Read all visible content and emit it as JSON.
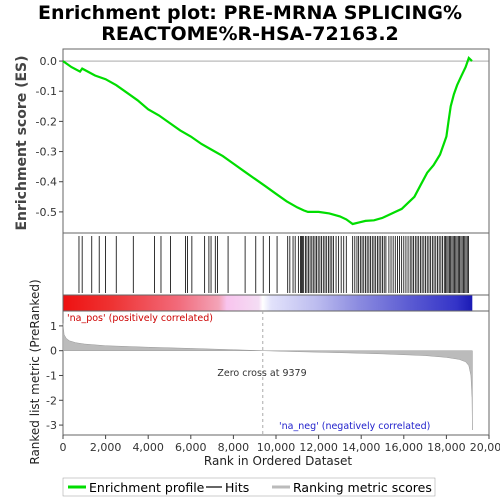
{
  "chart_data": {
    "type": "line",
    "title_line1": "Enrichment plot: PRE-MRNA SPLICING%",
    "title_line2": "REACTOME%R-HSA-72163.2",
    "es_panel": {
      "ylabel": "Enrichment score (ES)",
      "ylim": [
        -0.57,
        0.04
      ],
      "yticks": [
        0.0,
        -0.1,
        -0.2,
        -0.3,
        -0.4,
        -0.5
      ],
      "ytick_labels": [
        "0.0",
        "-0.1",
        "-0.2",
        "-0.3",
        "-0.4",
        "-0.5"
      ],
      "line_color": "#00dd00",
      "series": [
        {
          "x": [
            0,
            400,
            800,
            900,
            1500,
            2000,
            2500,
            3000,
            3500,
            4000,
            4500,
            5000,
            5500,
            6000,
            6500,
            7000,
            7500,
            8000,
            8500,
            9000,
            9500,
            10000,
            10500,
            11000,
            11300,
            11500,
            12000,
            12500,
            13000,
            13300,
            13600,
            13900,
            14200,
            14600,
            15000,
            15300,
            15600,
            15900,
            16200,
            16500,
            16800,
            17100,
            17400,
            17700,
            17900,
            18000,
            18100,
            18200,
            18350,
            18500,
            18700,
            18900,
            19050,
            19200
          ],
          "y": [
            0.0,
            -0.02,
            -0.035,
            -0.025,
            -0.048,
            -0.06,
            -0.08,
            -0.105,
            -0.13,
            -0.16,
            -0.18,
            -0.205,
            -0.23,
            -0.25,
            -0.275,
            -0.295,
            -0.315,
            -0.34,
            -0.365,
            -0.39,
            -0.415,
            -0.44,
            -0.465,
            -0.485,
            -0.495,
            -0.5,
            -0.5,
            -0.505,
            -0.515,
            -0.525,
            -0.54,
            -0.535,
            -0.53,
            -0.528,
            -0.52,
            -0.51,
            -0.5,
            -0.49,
            -0.47,
            -0.45,
            -0.41,
            -0.37,
            -0.345,
            -0.31,
            -0.27,
            -0.25,
            -0.2,
            -0.15,
            -0.11,
            -0.08,
            -0.05,
            -0.02,
            0.01,
            0.0
          ]
        }
      ]
    },
    "hits_panel": {
      "hit_ranks": [
        750,
        900,
        1350,
        1700,
        2000,
        2500,
        3300,
        4300,
        4600,
        5050,
        5750,
        5850,
        6050,
        6650,
        6850,
        6950,
        7150,
        7250,
        7750,
        8550,
        9050,
        9400,
        9700,
        10050,
        10550,
        10650,
        10800,
        10900,
        11050,
        11150,
        11200,
        11250,
        11300,
        11380,
        11450,
        11520,
        11600,
        11680,
        11750,
        11830,
        11900,
        11980,
        12060,
        12140,
        12220,
        12300,
        12380,
        12460,
        12540,
        12620,
        12700,
        12820,
        12940,
        13060,
        13180,
        13300,
        13600,
        13700,
        13800,
        13880,
        13960,
        14040,
        14120,
        14200,
        14280,
        14360,
        14440,
        14520,
        14600,
        14680,
        14760,
        14840,
        14920,
        15000,
        15080,
        15160,
        15300,
        15400,
        15500,
        15600,
        15700,
        15800,
        15900,
        16000,
        16100,
        16200,
        16300,
        16380,
        16460,
        16540,
        16620,
        16700,
        16780,
        16860,
        16940,
        17020,
        17100,
        17180,
        17260,
        17340,
        17420,
        17500,
        17580,
        17660,
        17740,
        17820,
        17900,
        17960,
        18020,
        18080,
        18140,
        18200,
        18260,
        18320,
        18380,
        18440,
        18500,
        18560,
        18620,
        18680,
        18740,
        18800,
        18860,
        18920,
        18980,
        19040
      ]
    },
    "bar_panel": {
      "pos_label": "'na_pos' (positively correlated)",
      "neg_label": "'na_neg' (negatively correlated)",
      "pos_color": "#cc0000",
      "neg_color": "#2222cc"
    },
    "metric_panel": {
      "ylabel": "Ranked list metric (PreRanked)",
      "ylim": [
        -3.4,
        1.6
      ],
      "yticks": [
        1,
        0,
        -1,
        -2,
        -3
      ],
      "ytick_labels": [
        "1",
        "0",
        "-1",
        "-2",
        "-3"
      ],
      "fill_color": "#bbbbbb",
      "x": [
        0,
        50,
        150,
        300,
        600,
        1000,
        2000,
        4000,
        6000,
        8000,
        9379,
        11000,
        13000,
        15000,
        17000,
        18000,
        18600,
        18900,
        19050,
        19150,
        19200,
        19220
      ],
      "values": [
        1.1,
        0.65,
        0.5,
        0.4,
        0.32,
        0.27,
        0.2,
        0.14,
        0.09,
        0.04,
        0.0,
        -0.04,
        -0.08,
        -0.13,
        -0.2,
        -0.27,
        -0.35,
        -0.45,
        -0.6,
        -1.0,
        -1.9,
        -3.2
      ],
      "zero_cross_label": "Zero cross at 9379",
      "zero_cross": 9379
    },
    "xaxis": {
      "label": "Rank in Ordered Dataset",
      "xlim": [
        0,
        20000
      ],
      "ticks": [
        0,
        2000,
        4000,
        6000,
        8000,
        10000,
        12000,
        14000,
        16000,
        18000,
        20000
      ],
      "tick_labels": [
        "0",
        "2,000",
        "4,000",
        "6,000",
        "8,000",
        "10,000",
        "12,000",
        "14,000",
        "16,000",
        "18,000",
        "20,000"
      ],
      "n_genes": 19220
    },
    "legend": {
      "placement": "bottom",
      "entries": [
        "Enrichment profile",
        "Hits",
        "Ranking metric scores"
      ]
    }
  }
}
